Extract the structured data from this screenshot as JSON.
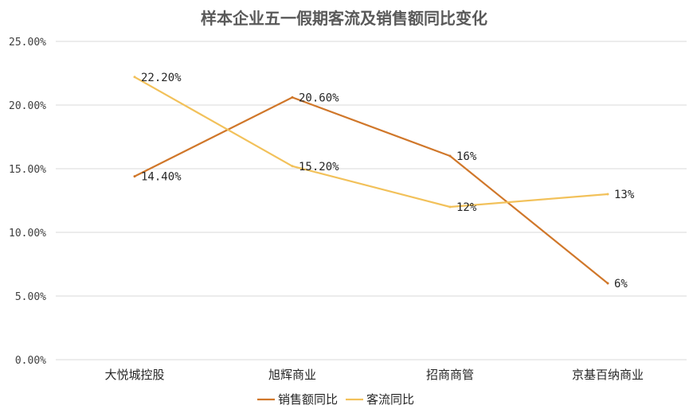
{
  "chart_data": {
    "type": "line",
    "title": "样本企业五一假期客流及销售额同比变化",
    "categories": [
      "大悦城控股",
      "旭辉商业",
      "招商商管",
      "京基百纳商业"
    ],
    "ylim": [
      0,
      25
    ],
    "yticks": [
      {
        "value": 0,
        "label": "0.00%"
      },
      {
        "value": 5,
        "label": "5.00%"
      },
      {
        "value": 10,
        "label": "10.00%"
      },
      {
        "value": 15,
        "label": "15.00%"
      },
      {
        "value": 20,
        "label": "20.00%"
      },
      {
        "value": 25,
        "label": "25.00%"
      }
    ],
    "grid": true,
    "legend_position": "bottom",
    "series": [
      {
        "name": "销售额同比",
        "color": "#d0772a",
        "values": [
          14.4,
          20.6,
          16,
          6
        ],
        "labels": [
          "14.40%",
          "20.60%",
          "16%",
          "6%"
        ]
      },
      {
        "name": "客流同比",
        "color": "#f2c15a",
        "values": [
          22.2,
          15.2,
          12,
          13
        ],
        "labels": [
          "22.20%",
          "15.20%",
          "12%",
          "13%"
        ]
      }
    ]
  }
}
